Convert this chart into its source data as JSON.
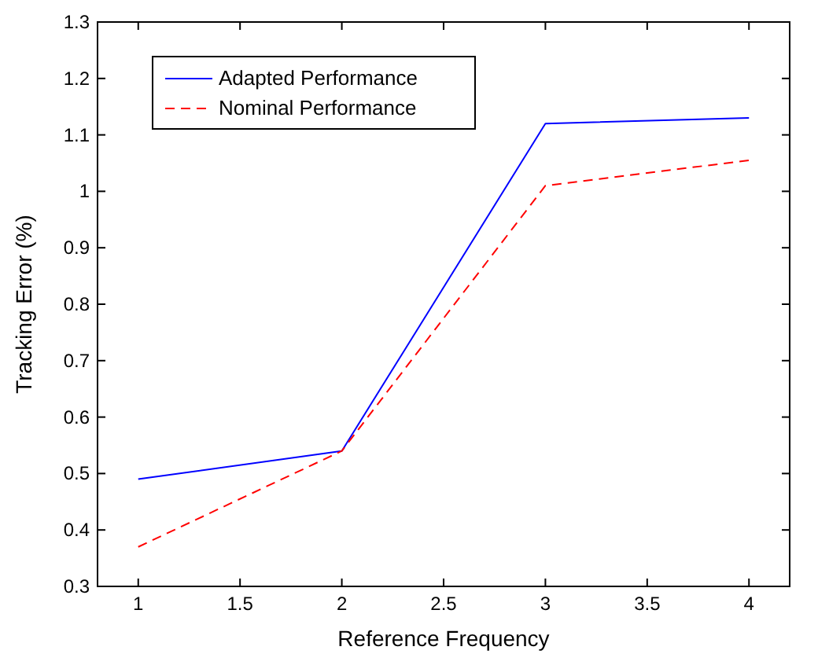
{
  "chart_data": {
    "type": "line",
    "xlabel": "Reference Frequency",
    "ylabel": "Tracking Error (%)",
    "x": [
      1,
      2,
      3,
      4
    ],
    "series": [
      {
        "name": "Adapted Performance",
        "color": "#0000ff",
        "values": [
          0.49,
          0.54,
          1.12,
          1.13
        ],
        "line_style": "solid"
      },
      {
        "name": "Nominal Performance",
        "color": "#ff0000",
        "values": [
          0.37,
          0.54,
          1.01,
          1.055
        ],
        "line_style": "dashed"
      }
    ],
    "xlim": [
      0.8,
      4.2
    ],
    "xticks": [
      1,
      1.5,
      2,
      2.5,
      3,
      3.5,
      4
    ],
    "ylim": [
      0.3,
      1.3
    ],
    "yticks": [
      0.3,
      0.4,
      0.5,
      0.6,
      0.7,
      0.8,
      0.9,
      1,
      1.1,
      1.2,
      1.3
    ],
    "legend": "top left",
    "grid": false,
    "marker": "none"
  }
}
